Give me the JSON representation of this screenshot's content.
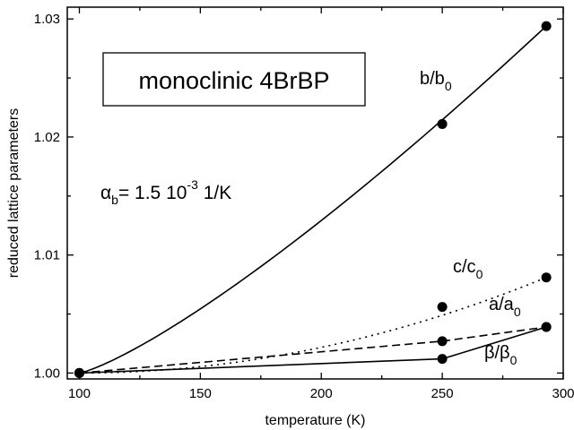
{
  "chart_data": {
    "type": "line",
    "xlabel": "temperature  (K)",
    "ylabel": "reduced lattice parameters",
    "xlim": [
      95,
      300
    ],
    "ylim": [
      0.9995,
      1.031
    ],
    "xticks": [
      100,
      150,
      200,
      250,
      300
    ],
    "xtick_labels": [
      "100",
      "150",
      "200",
      "250",
      "300"
    ],
    "yticks": [
      1.0,
      1.01,
      1.02,
      1.03
    ],
    "ytick_labels": [
      "1.00",
      "1.01",
      "1.02",
      "1.03"
    ],
    "grid": false,
    "series": [
      {
        "name": "b/b0",
        "line_style": "solid",
        "points": [
          [
            100,
            1.0
          ],
          [
            250,
            1.0211
          ],
          [
            293,
            1.0294
          ]
        ],
        "curve": {
          "coefficient": 0.0015,
          "exponent": 1.25,
          "x0": 100
        }
      },
      {
        "name": "c/c0",
        "line_style": "dotted",
        "points": [
          [
            100,
            1.0
          ],
          [
            250,
            1.0056
          ],
          [
            293,
            1.0081
          ]
        ],
        "curve": {
          "coefficient": 0.0015,
          "exponent": 2.0,
          "x0": 100
        }
      },
      {
        "name": "a/a0",
        "line_style": "dashed",
        "points": [
          [
            100,
            1.0
          ],
          [
            250,
            1.0027
          ],
          [
            293,
            1.0039
          ]
        ],
        "polyline": true
      },
      {
        "name": "β/β0",
        "line_style": "solid",
        "points": [
          [
            100,
            1.0
          ],
          [
            250,
            1.0012
          ],
          [
            293,
            1.0039
          ]
        ],
        "polyline": true
      }
    ],
    "annotations": {
      "box_text": "monoclinic 4BrBP",
      "alpha_main": "α",
      "alpha_sub": "b",
      "alpha_equals": "= 1.5 10",
      "alpha_exp": "-3",
      "alpha_unit": "  1/K"
    },
    "series_labels": [
      {
        "main": "b/b",
        "sub": "0"
      },
      {
        "main": "c/c",
        "sub": "0"
      },
      {
        "main": "a/a",
        "sub": "0"
      },
      {
        "main": "β/β",
        "sub": "0"
      }
    ]
  }
}
